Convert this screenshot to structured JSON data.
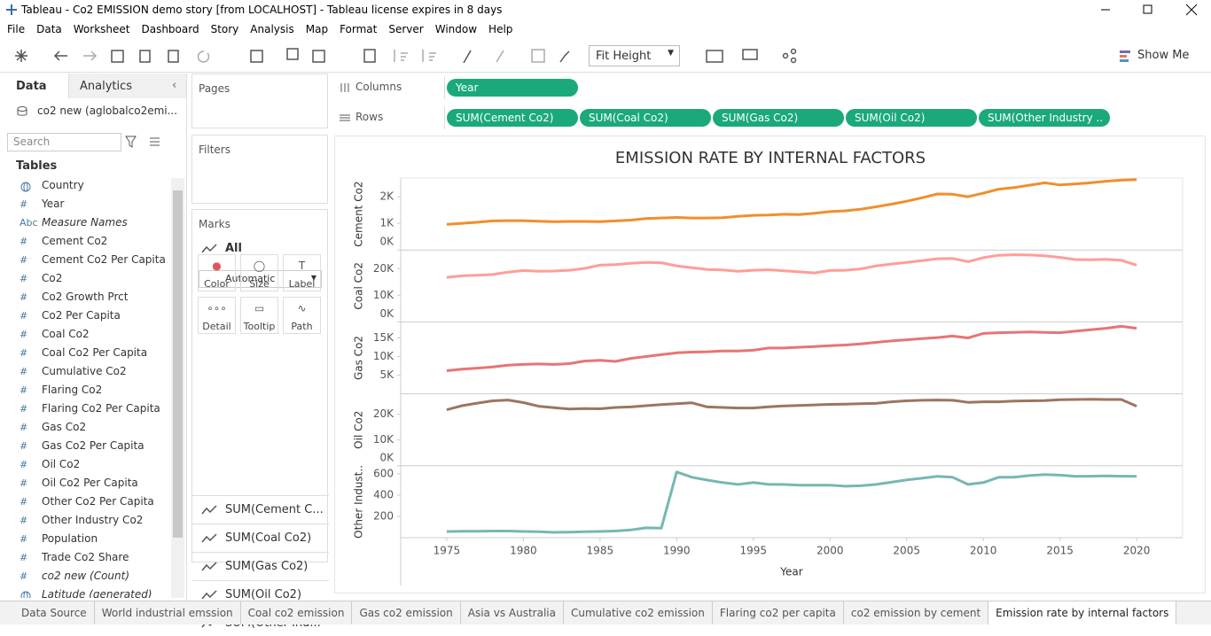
{
  "window": {
    "title": "Tableau - Co2 EMISSION demo story [from LOCALHOST] - Tableau license expires in 8 days"
  },
  "menu": [
    "File",
    "Data",
    "Worksheet",
    "Dashboard",
    "Story",
    "Analysis",
    "Map",
    "Format",
    "Server",
    "Window",
    "Help"
  ],
  "toolbar": {
    "fit": "Fit Height",
    "show_me": "Show Me"
  },
  "data_pane": {
    "tabs": [
      "Data",
      "Analytics"
    ],
    "source": "co2 new (aglobalco2emi...",
    "search": "Search",
    "tables_heading": "Tables",
    "fields": [
      {
        "icon": "geo",
        "name": "Country"
      },
      {
        "icon": "#",
        "name": "Year"
      },
      {
        "icon": "Abc",
        "name": "Measure Names",
        "italic": true
      },
      {
        "icon": "#",
        "name": "Cement Co2"
      },
      {
        "icon": "#",
        "name": "Cement Co2 Per Capita"
      },
      {
        "icon": "#",
        "name": "Co2"
      },
      {
        "icon": "#",
        "name": "Co2 Growth Prct"
      },
      {
        "icon": "#",
        "name": "Co2 Per Capita"
      },
      {
        "icon": "#",
        "name": "Coal Co2"
      },
      {
        "icon": "#",
        "name": "Coal Co2 Per Capita"
      },
      {
        "icon": "#",
        "name": "Cumulative Co2"
      },
      {
        "icon": "#",
        "name": "Flaring Co2"
      },
      {
        "icon": "#",
        "name": "Flaring Co2 Per Capita"
      },
      {
        "icon": "#",
        "name": "Gas Co2"
      },
      {
        "icon": "#",
        "name": "Gas Co2 Per Capita"
      },
      {
        "icon": "#",
        "name": "Oil Co2"
      },
      {
        "icon": "#",
        "name": "Oil Co2 Per Capita"
      },
      {
        "icon": "#",
        "name": "Other Co2 Per Capita"
      },
      {
        "icon": "#",
        "name": "Other Industry Co2"
      },
      {
        "icon": "#",
        "name": "Population"
      },
      {
        "icon": "#",
        "name": "Trade Co2 Share"
      },
      {
        "icon": "#",
        "name": "co2 new (Count)",
        "italic": true
      },
      {
        "icon": "geo",
        "name": "Latitude (generated)",
        "italic": true
      }
    ]
  },
  "shelves": {
    "pages": "Pages",
    "filters": "Filters",
    "columns": {
      "label": "Columns",
      "pills": [
        "Year"
      ]
    },
    "rows": {
      "label": "Rows",
      "pills": [
        "SUM(Cement Co2)",
        "SUM(Coal Co2)",
        "SUM(Gas Co2)",
        "SUM(Oil Co2)",
        "SUM(Other Industry .."
      ]
    }
  },
  "marks": {
    "title": "Marks",
    "all": "All",
    "mark_type": "Automatic",
    "buttons": [
      "Color",
      "Size",
      "Label",
      "Detail",
      "Tooltip",
      "Path"
    ],
    "measures": [
      "SUM(Cement C...",
      "SUM(Coal Co2)",
      "SUM(Gas Co2)",
      "SUM(Oil Co2)",
      "SUM(Other Ind..."
    ]
  },
  "tabs": {
    "items": [
      "Data Source",
      "World industrial emssion",
      "Coal co2 emission",
      "Gas co2 emission",
      "Asia vs Australia",
      "Cumulative co2 emission",
      "Flaring co2 per capita",
      "co2 emission by cement",
      "Emission rate by internal factors"
    ],
    "active": 8
  },
  "chart_data": {
    "type": "line",
    "title": "EMISSION RATE BY INTERNAL FACTORS",
    "x_label": "Year",
    "x": [
      1975,
      1976,
      1977,
      1978,
      1979,
      1980,
      1981,
      1982,
      1983,
      1984,
      1985,
      1986,
      1987,
      1988,
      1989,
      1990,
      1991,
      1992,
      1993,
      1994,
      1995,
      1996,
      1997,
      1998,
      1999,
      2000,
      2001,
      2002,
      2003,
      2004,
      2005,
      2006,
      2007,
      2008,
      2009,
      2010,
      2011,
      2012,
      2013,
      2014,
      2015,
      2016,
      2017,
      2018,
      2019,
      2020
    ],
    "xlim": [
      1972,
      2023
    ],
    "xticks": [
      1975,
      1980,
      1985,
      1990,
      1995,
      2000,
      2005,
      2010,
      2015,
      2020
    ],
    "grid": false,
    "series": [
      {
        "name": "Cement Co2",
        "color": "#f28e2b",
        "ylim": [
          0,
          2700
        ],
        "yticks": [
          {
            "value": 0,
            "label": "0K"
          },
          {
            "value": 1000,
            "label": "1K"
          },
          {
            "value": 2000,
            "label": "2K"
          }
        ],
        "values": [
          960,
          1000,
          1040,
          1090,
          1100,
          1100,
          1080,
          1060,
          1070,
          1070,
          1060,
          1090,
          1120,
          1180,
          1200,
          1220,
          1200,
          1200,
          1210,
          1260,
          1300,
          1310,
          1340,
          1330,
          1380,
          1440,
          1470,
          1530,
          1620,
          1720,
          1830,
          1960,
          2100,
          2090,
          2000,
          2130,
          2280,
          2340,
          2430,
          2520,
          2440,
          2480,
          2520,
          2580,
          2620,
          2640
        ]
      },
      {
        "name": "Coal Co2",
        "color": "#ff9d9a",
        "ylim": [
          0,
          27000
        ],
        "yticks": [
          {
            "value": 0,
            "label": "0K"
          },
          {
            "value": 10000,
            "label": "10K"
          },
          {
            "value": 20000,
            "label": "20K"
          }
        ],
        "values": [
          16700,
          17300,
          17500,
          17800,
          18700,
          19300,
          19000,
          19100,
          19400,
          20100,
          21300,
          21500,
          22000,
          22300,
          22200,
          21000,
          20300,
          19700,
          19500,
          19000,
          19400,
          19600,
          19200,
          18800,
          18400,
          19300,
          19400,
          19900,
          21000,
          21700,
          22300,
          23000,
          23700,
          23800,
          22600,
          24100,
          25000,
          25200,
          25100,
          24800,
          24200,
          23400,
          23300,
          23500,
          23100,
          21300
        ]
      },
      {
        "name": "Gas Co2",
        "color": "#e87474",
        "ylim": [
          0,
          19300
        ],
        "yticks": [
          {
            "value": 5000,
            "label": "5K"
          },
          {
            "value": 10000,
            "label": "10K"
          },
          {
            "value": 15000,
            "label": "15K"
          }
        ],
        "values": [
          6200,
          6600,
          6900,
          7200,
          7700,
          7900,
          8000,
          7900,
          8100,
          8800,
          9000,
          8700,
          9500,
          10000,
          10500,
          11000,
          11200,
          11300,
          11500,
          11500,
          11700,
          12300,
          12300,
          12500,
          12700,
          12900,
          13100,
          13400,
          13800,
          14200,
          14500,
          14800,
          15100,
          15500,
          15000,
          16200,
          16400,
          16500,
          16600,
          16500,
          16400,
          16800,
          17200,
          17600,
          18100,
          17600
        ]
      },
      {
        "name": "Oil Co2",
        "color": "#9c755f",
        "ylim": [
          0,
          27900
        ],
        "yticks": [
          {
            "value": 0,
            "label": "0K"
          },
          {
            "value": 10000,
            "label": "10K"
          },
          {
            "value": 20000,
            "label": "20K"
          }
        ],
        "values": [
          21700,
          23300,
          24300,
          25200,
          25500,
          24500,
          23100,
          22500,
          22000,
          22200,
          22100,
          22600,
          22800,
          23300,
          23700,
          24100,
          24400,
          22800,
          22600,
          22400,
          22400,
          22900,
          23200,
          23400,
          23600,
          23800,
          23900,
          24100,
          24200,
          24800,
          25200,
          25400,
          25500,
          25400,
          24600,
          24800,
          24800,
          25100,
          25200,
          25300,
          25600,
          25700,
          25800,
          25700,
          25700,
          23100
        ]
      },
      {
        "name": "Other Indust..",
        "color": "#76b7b2",
        "ylim": [
          0,
          675
        ],
        "yticks": [
          200,
          400,
          600
        ],
        "values": [
          58,
          60,
          60,
          62,
          62,
          58,
          56,
          50,
          52,
          56,
          58,
          62,
          72,
          92,
          90,
          617,
          567,
          540,
          517,
          500,
          517,
          500,
          500,
          492,
          492,
          492,
          483,
          487,
          500,
          520,
          542,
          558,
          575,
          567,
          500,
          517,
          567,
          567,
          583,
          592,
          587,
          575,
          577,
          580,
          577,
          575
        ]
      }
    ]
  }
}
